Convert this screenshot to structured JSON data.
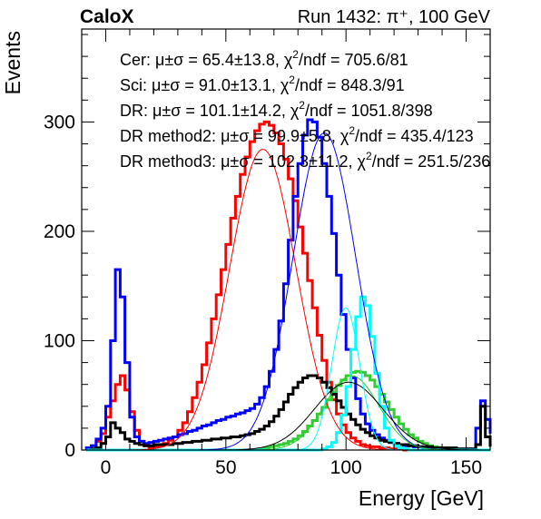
{
  "chart_data": {
    "type": "line",
    "header_left": "CaloX",
    "header_right": "Run 1432: π⁺, 100 GeV",
    "xlabel": "Energy [GeV]",
    "ylabel": "Events",
    "xlim": [
      -10,
      160
    ],
    "ylim": [
      0,
      385
    ],
    "xticks": [
      0,
      50,
      100,
      150
    ],
    "yticks": [
      0,
      100,
      200,
      300
    ],
    "grid": false,
    "legend_placement": "top-left",
    "colors": {
      "cer": "#ff0000",
      "sci": "#0000ff",
      "dr": "#000000",
      "dr_method2": "#00ffff",
      "dr_method3": "#33cc33"
    },
    "annotations": [
      {
        "label": "Cer:",
        "prefix": "μ±σ = 65.4±13.8, χ",
        "sup": "2",
        "suffix": "/ndf = 705.6/81"
      },
      {
        "label": "Sci:",
        "prefix": "μ±σ = 91.0±13.1, χ",
        "sup": "2",
        "suffix": "/ndf = 848.3/91"
      },
      {
        "label": "DR:",
        "prefix": "μ±σ = 101.1±14.2, χ",
        "sup": "2",
        "suffix": "/ndf = 1051.8/398"
      },
      {
        "label": "DR method2:",
        "prefix": "μ±σ = 99.9±5.8, χ",
        "sup": "2",
        "suffix": "/ndf = 435.4/123"
      },
      {
        "label": "DR method3:",
        "prefix": "μ±σ = 102.3±11.2, χ",
        "sup": "2",
        "suffix": "/ndf = 251.5/236"
      }
    ],
    "series": [
      {
        "key": "cer",
        "color": "#ff0000",
        "binning": {
          "start": -8,
          "width": 2
        },
        "values": [
          2,
          4,
          8,
          15,
          30,
          45,
          60,
          68,
          55,
          35,
          18,
          8,
          4,
          2,
          3,
          4,
          6,
          9,
          12,
          18,
          25,
          35,
          48,
          62,
          78,
          98,
          120,
          142,
          165,
          188,
          212,
          232,
          252,
          268,
          282,
          292,
          298,
          300,
          297,
          290,
          280,
          266,
          248,
          228,
          204,
          180,
          155,
          130,
          105,
          82,
          62,
          46,
          33,
          23,
          16,
          11,
          8,
          5,
          4,
          3,
          3,
          2,
          2,
          1,
          1,
          1,
          0,
          0,
          0,
          0,
          0,
          0,
          0,
          0,
          0,
          0,
          0,
          0,
          0,
          0,
          0,
          0,
          0,
          0,
          0
        ]
      },
      {
        "key": "sci",
        "color": "#0000ff",
        "binning": {
          "start": -8,
          "width": 2
        },
        "values": [
          2,
          4,
          10,
          20,
          40,
          100,
          165,
          140,
          80,
          30,
          12,
          8,
          6,
          7,
          8,
          9,
          10,
          11,
          12,
          14,
          15,
          17,
          18,
          20,
          22,
          23,
          25,
          27,
          28,
          30,
          31,
          33,
          34,
          36,
          38,
          42,
          48,
          58,
          72,
          92,
          118,
          152,
          192,
          232,
          262,
          288,
          302,
          300,
          286,
          262,
          232,
          198,
          160,
          124,
          92,
          66,
          47,
          33,
          24,
          18,
          14,
          11,
          9,
          7,
          6,
          5,
          4,
          4,
          3,
          3,
          2,
          2,
          2,
          1,
          1,
          1,
          1,
          1,
          1,
          1,
          1,
          20,
          45,
          28,
          15
        ]
      },
      {
        "key": "dr_method3",
        "color": "#33cc33",
        "binning": {
          "start": -8,
          "width": 2
        },
        "values": [
          0,
          0,
          0,
          0,
          0,
          0,
          0,
          0,
          0,
          0,
          0,
          0,
          0,
          0,
          0,
          0,
          0,
          0,
          0,
          0,
          0,
          0,
          0,
          0,
          0,
          0,
          0,
          0,
          0,
          0,
          0,
          0,
          0,
          0,
          0,
          0,
          1,
          2,
          3,
          4,
          5,
          6,
          8,
          10,
          13,
          17,
          22,
          27,
          33,
          39,
          46,
          53,
          59,
          64,
          68,
          71,
          72,
          71,
          68,
          64,
          58,
          51,
          44,
          37,
          30,
          24,
          19,
          14,
          11,
          8,
          6,
          4,
          3,
          2,
          2,
          1,
          1,
          1,
          0,
          0,
          0,
          0,
          0,
          0,
          0
        ]
      },
      {
        "key": "dr",
        "color": "#000000",
        "binning": {
          "start": -8,
          "width": 2
        },
        "values": [
          0,
          1,
          2,
          6,
          12,
          25,
          20,
          16,
          10,
          8,
          6,
          5,
          4,
          4,
          5,
          5,
          5,
          5,
          6,
          6,
          7,
          7,
          8,
          8,
          9,
          9,
          10,
          10,
          11,
          11,
          12,
          12,
          13,
          14,
          15,
          17,
          19,
          22,
          26,
          31,
          37,
          44,
          51,
          57,
          62,
          66,
          68,
          68,
          66,
          62,
          57,
          51,
          45,
          39,
          33,
          28,
          23,
          19,
          16,
          13,
          11,
          9,
          8,
          7,
          6,
          5,
          5,
          4,
          4,
          3,
          3,
          3,
          2,
          2,
          2,
          2,
          2,
          1,
          1,
          1,
          1,
          5,
          40,
          12,
          3
        ]
      },
      {
        "key": "dr_method2",
        "color": "#00ffff",
        "binning": {
          "start": -8,
          "width": 2
        },
        "values": [
          0,
          0,
          0,
          0,
          0,
          0,
          0,
          0,
          0,
          0,
          0,
          0,
          0,
          0,
          0,
          0,
          0,
          0,
          0,
          0,
          0,
          0,
          0,
          0,
          0,
          0,
          0,
          0,
          0,
          0,
          0,
          0,
          0,
          0,
          0,
          0,
          0,
          0,
          0,
          0,
          0,
          0,
          0,
          0,
          0,
          0,
          0,
          0,
          0,
          1,
          3,
          7,
          16,
          32,
          58,
          92,
          122,
          140,
          132,
          104,
          70,
          40,
          20,
          9,
          4,
          2,
          1,
          0,
          0,
          0,
          0,
          0,
          0,
          0,
          0,
          0,
          0,
          0,
          0,
          0,
          0,
          0,
          0,
          0,
          0
        ]
      }
    ],
    "fits": [
      {
        "key": "cer",
        "color": "#ff0000",
        "amplitude": 275,
        "mean": 65.4,
        "sigma": 13.8
      },
      {
        "key": "sci",
        "color": "#0000ff",
        "amplitude": 290,
        "mean": 91.0,
        "sigma": 13.1
      },
      {
        "key": "dr_method3",
        "color": "#33cc33",
        "amplitude": 68,
        "mean": 102.3,
        "sigma": 11.2
      },
      {
        "key": "dr",
        "color": "#000000",
        "amplitude": 62,
        "mean": 101.1,
        "sigma": 14.2
      },
      {
        "key": "dr_method2",
        "color": "#00ffff",
        "amplitude": 130,
        "mean": 99.9,
        "sigma": 5.8
      }
    ]
  }
}
